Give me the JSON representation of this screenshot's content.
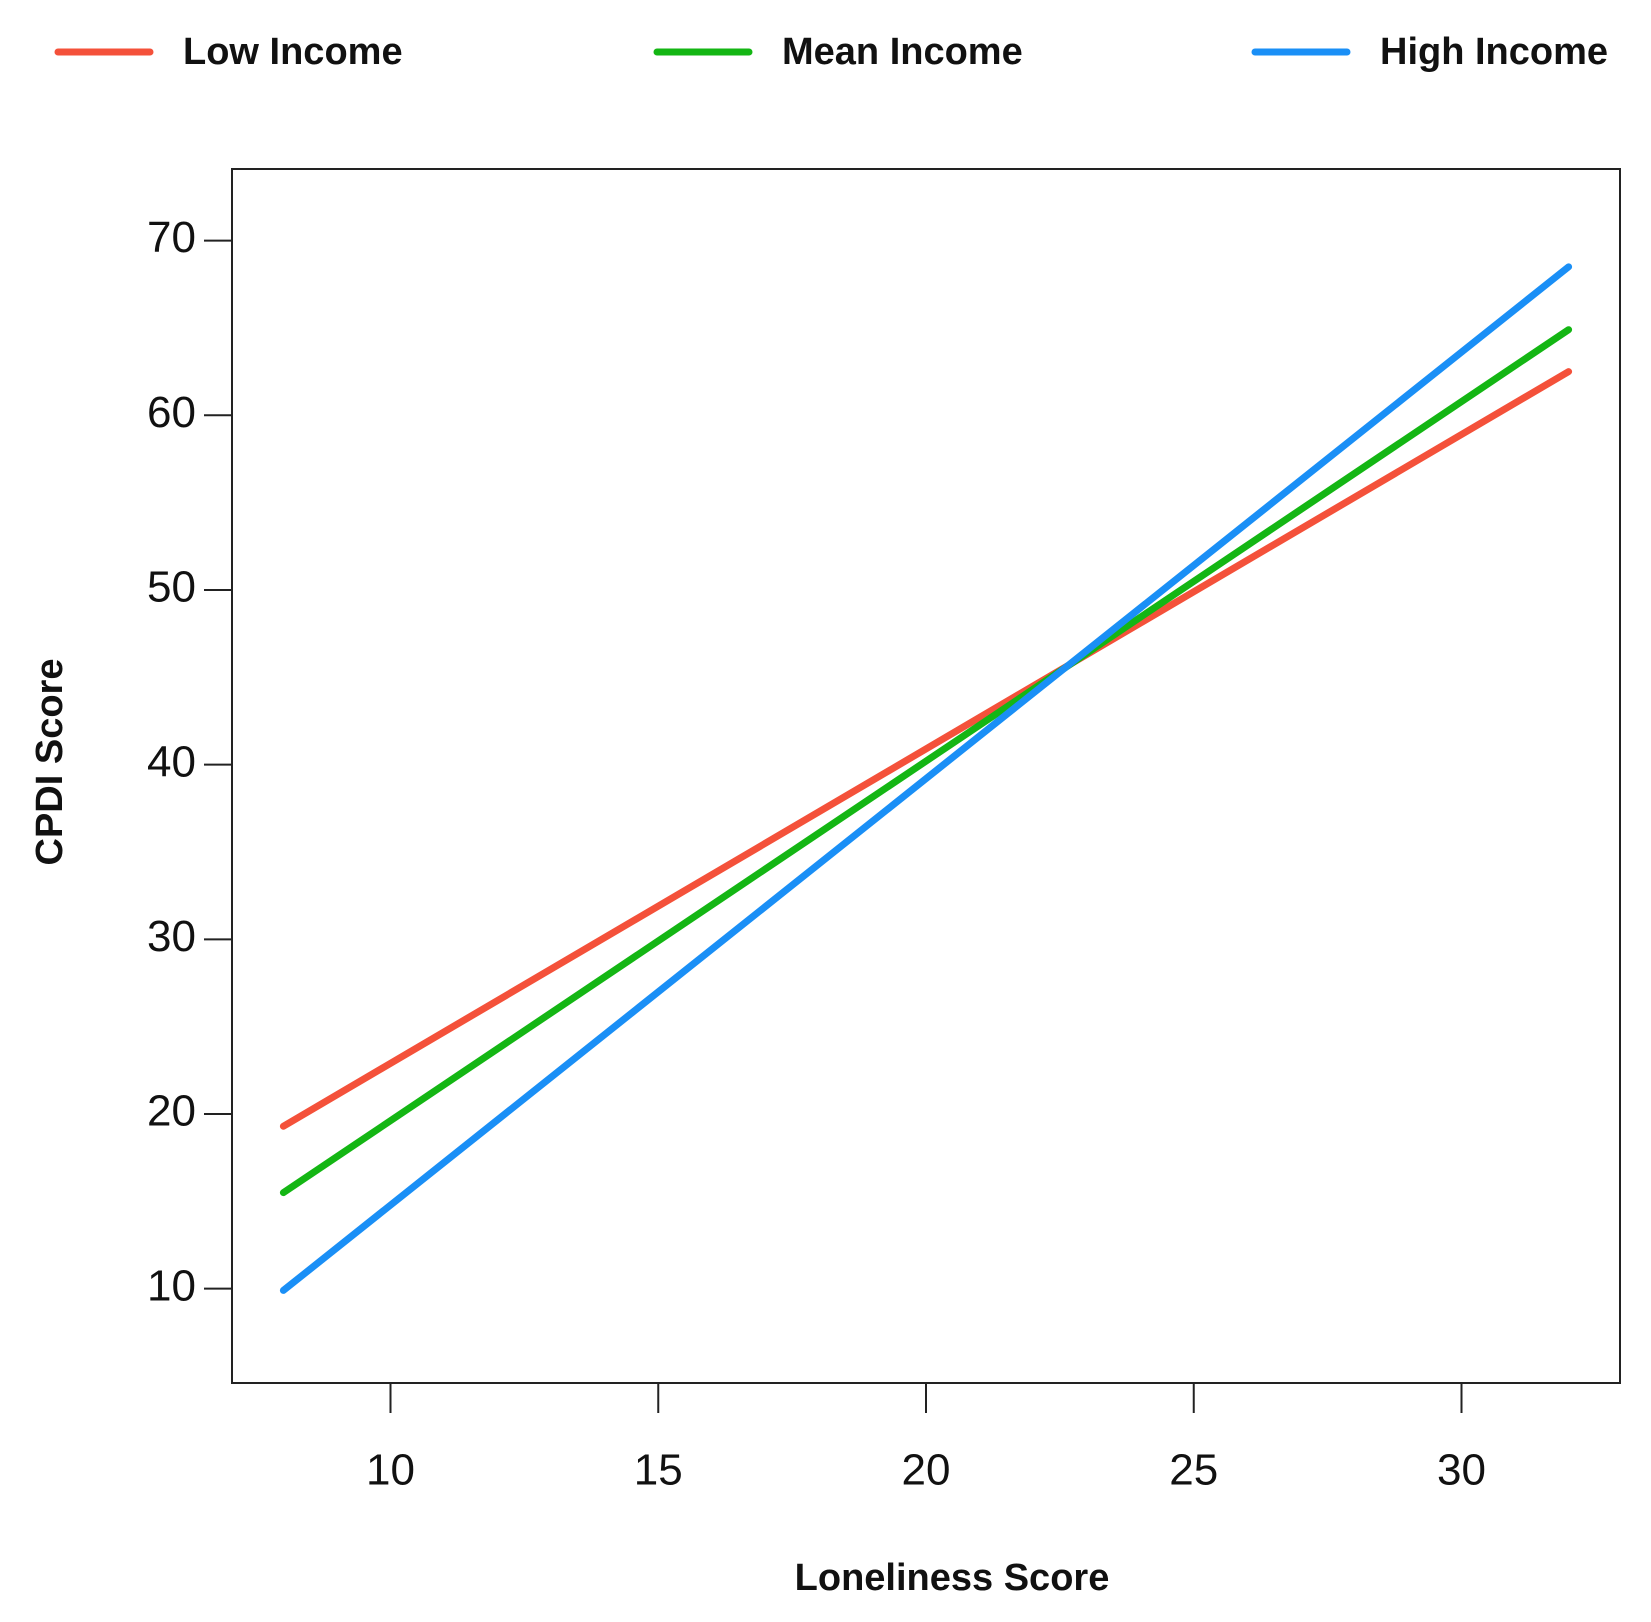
{
  "chart_data": {
    "type": "line",
    "x_label": "Loneliness Score",
    "y_label": "CPDI Score",
    "x": [
      8,
      32
    ],
    "series": [
      {
        "name": "Low Income",
        "color": "#f4513a",
        "values": [
          19.3,
          62.5
        ]
      },
      {
        "name": "Mean Income",
        "color": "#14b614",
        "values": [
          15.5,
          64.9
        ]
      },
      {
        "name": "High Income",
        "color": "#1a8ff6",
        "values": [
          9.9,
          68.5
        ]
      }
    ],
    "xlim": [
      7.04,
      32.96
    ],
    "xticks": [
      10,
      15,
      20,
      25,
      30
    ],
    "ylim": [
      4.6,
      74.1
    ],
    "yticks": [
      10,
      20,
      30,
      40,
      50,
      60,
      70
    ],
    "legend": "top",
    "grid": false
  }
}
